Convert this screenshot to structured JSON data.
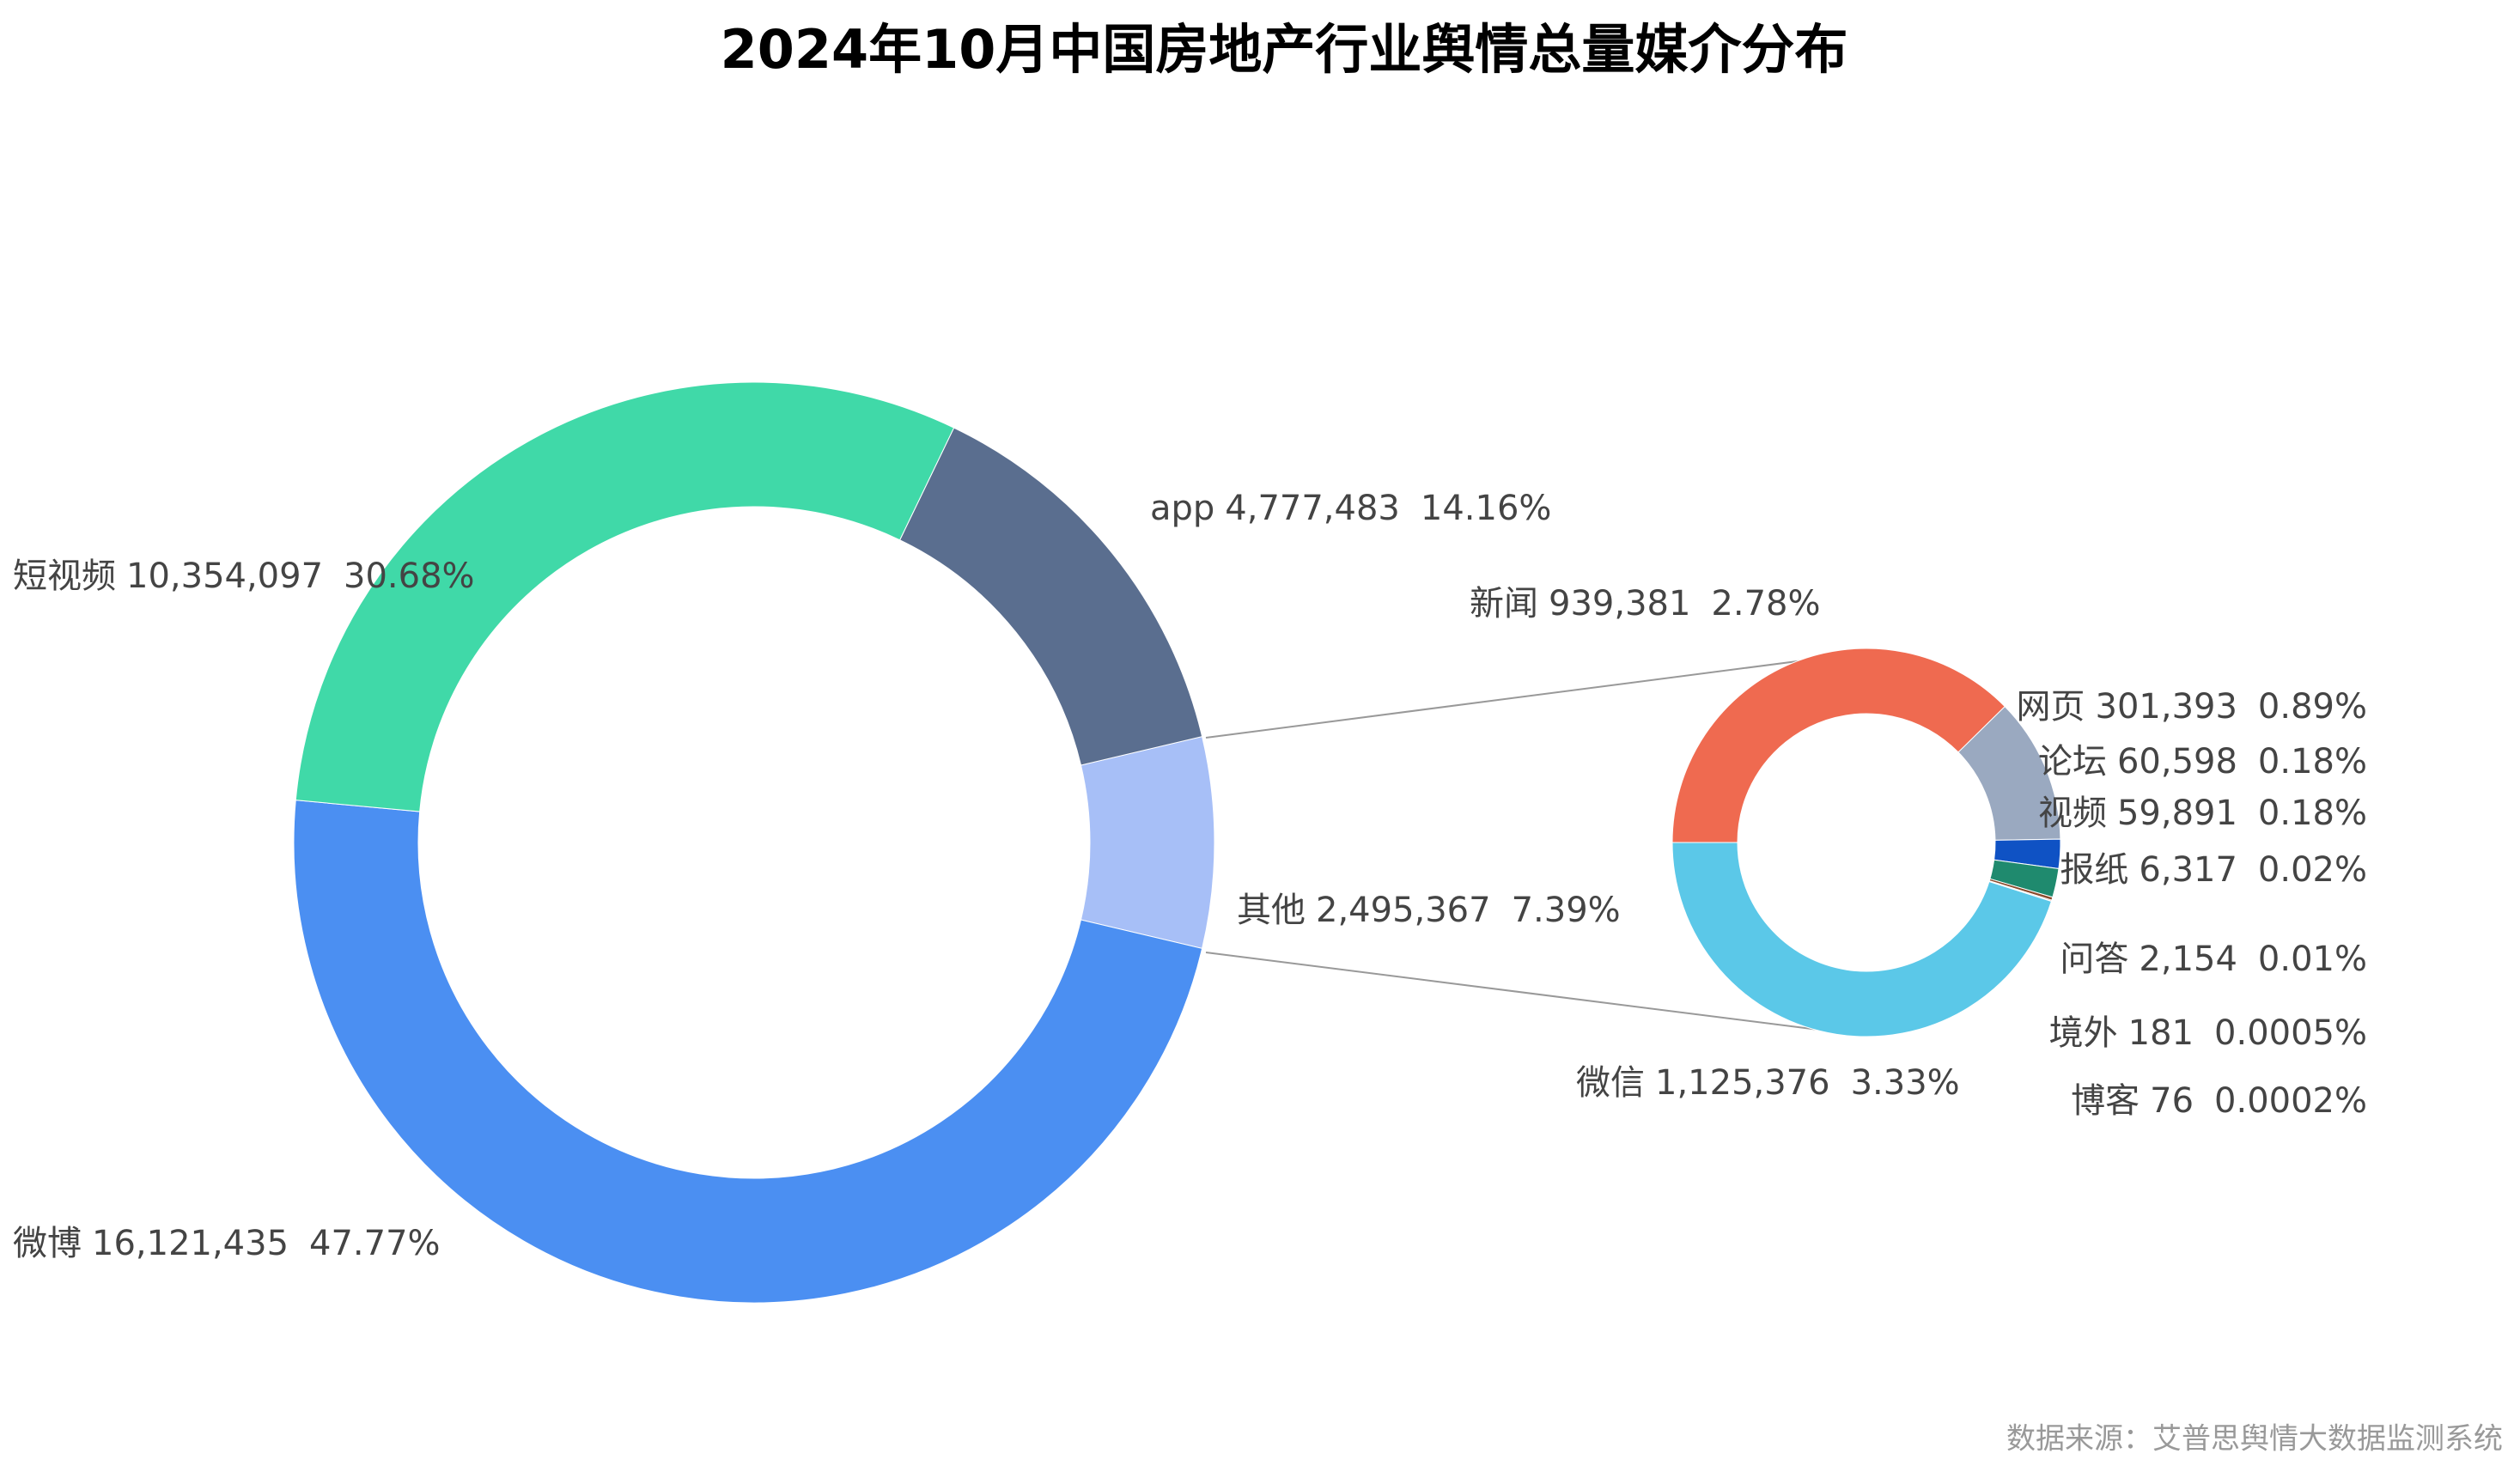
{
  "chart_data": [
    {
      "type": "pie",
      "title": "2024年10月中国房地产行业舆情总量媒介分布",
      "categories": [
        "其他",
        "微博",
        "短视频",
        "app"
      ],
      "values": [
        2495367,
        16121435,
        10354097,
        4777483
      ],
      "value_labels": [
        "2,495,367",
        "16,121,435",
        "10,354,097",
        "4,777,483"
      ],
      "percent_labels": [
        "7.39%",
        "47.77%",
        "30.68%",
        "14.16%"
      ],
      "colors": [
        "#a7bff7",
        "#4b8ff2",
        "#40d9a8",
        "#5a6e8f"
      ]
    },
    {
      "type": "pie",
      "categories": [
        "新闻",
        "网页",
        "论坛",
        "视频",
        "报纸",
        "问答",
        "境外",
        "博客",
        "微信"
      ],
      "values": [
        939381,
        301393,
        60598,
        59891,
        6317,
        2154,
        181,
        76,
        1125376
      ],
      "value_labels": [
        "939,381",
        "301,393",
        "60,598",
        "59,891",
        "6,317",
        "2,154",
        "181",
        "76",
        "1,125,376"
      ],
      "percent_labels": [
        "2.78%",
        "0.89%",
        "0.18%",
        "0.18%",
        "0.02%",
        "0.01%",
        "0.0005%",
        "0.0002%",
        "3.33%"
      ],
      "colors": [
        "#ef6a50",
        "#9aa9c0",
        "#0f52c4",
        "#1f8a6e",
        "#8b4a2b",
        "#c04040",
        "#606060",
        "#303030",
        "#5bc8e8"
      ]
    }
  ],
  "source": "数据来源：艾普思舆情大数据监测系统"
}
